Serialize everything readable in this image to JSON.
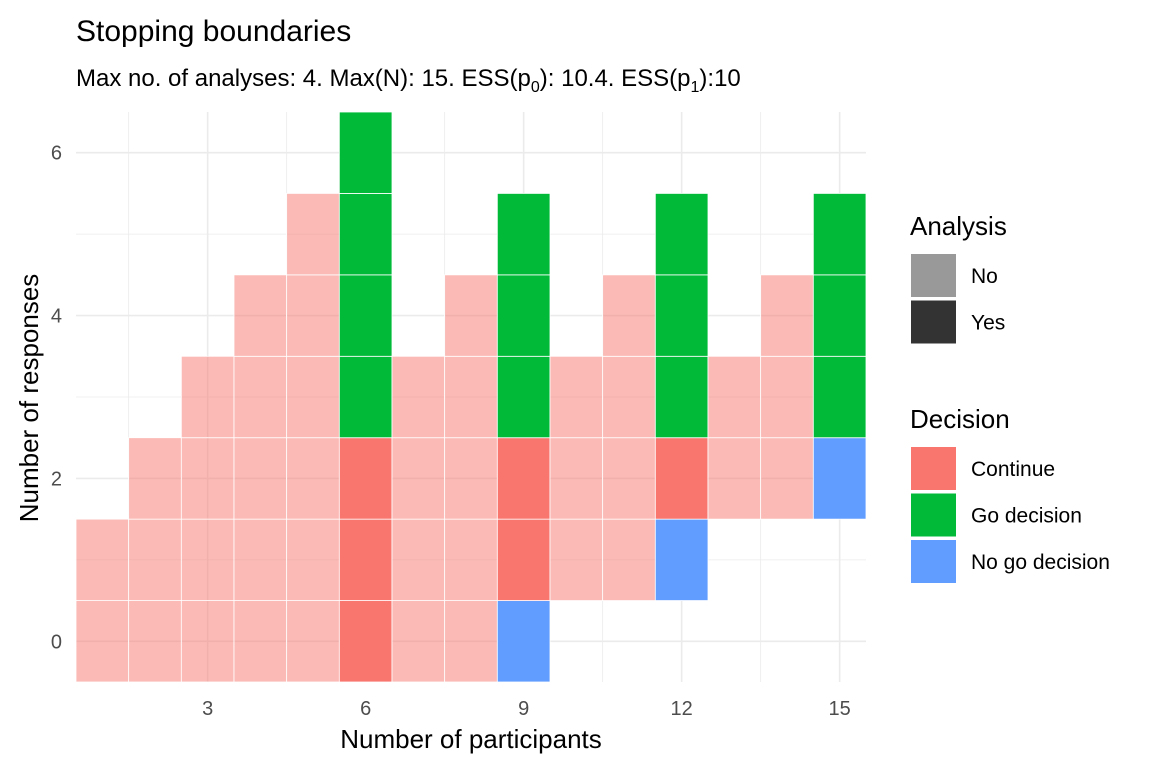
{
  "chart_data": {
    "type": "heatmap",
    "title": "Stopping boundaries",
    "subtitle": {
      "before": "Max no. of analyses: 4. Max(N): 15. ESS(p",
      "sub0": "0",
      "middle": "): 10.4. ESS(p",
      "sub1": "1",
      "after": "):10"
    },
    "xlabel": "Number of participants",
    "ylabel": "Number of responses",
    "xlim": [
      0.5,
      15.5
    ],
    "ylim": [
      -0.5,
      6.5
    ],
    "xticks": [
      3,
      6,
      9,
      12,
      15
    ],
    "yticks": [
      0,
      2,
      4,
      6
    ],
    "grid": true,
    "colors": {
      "Continue": "#F8766D",
      "Go decision": "#00BA38",
      "No go decision": "#619CFF",
      "analysis_no_alpha": 0.5,
      "analysis_yes_alpha": 1.0,
      "grid": "#ebebeb"
    },
    "analysis_points": [
      6,
      9,
      12,
      15
    ],
    "columns": [
      {
        "n": 1,
        "cells": [
          [
            0,
            "Continue"
          ],
          [
            1,
            "Continue"
          ]
        ]
      },
      {
        "n": 2,
        "cells": [
          [
            0,
            "Continue"
          ],
          [
            1,
            "Continue"
          ],
          [
            2,
            "Continue"
          ]
        ]
      },
      {
        "n": 3,
        "cells": [
          [
            0,
            "Continue"
          ],
          [
            1,
            "Continue"
          ],
          [
            2,
            "Continue"
          ],
          [
            3,
            "Continue"
          ]
        ]
      },
      {
        "n": 4,
        "cells": [
          [
            0,
            "Continue"
          ],
          [
            1,
            "Continue"
          ],
          [
            2,
            "Continue"
          ],
          [
            3,
            "Continue"
          ],
          [
            4,
            "Continue"
          ]
        ]
      },
      {
        "n": 5,
        "cells": [
          [
            0,
            "Continue"
          ],
          [
            1,
            "Continue"
          ],
          [
            2,
            "Continue"
          ],
          [
            3,
            "Continue"
          ],
          [
            4,
            "Continue"
          ],
          [
            5,
            "Continue"
          ]
        ]
      },
      {
        "n": 6,
        "cells": [
          [
            0,
            "Continue"
          ],
          [
            1,
            "Continue"
          ],
          [
            2,
            "Continue"
          ],
          [
            3,
            "Go decision"
          ],
          [
            4,
            "Go decision"
          ],
          [
            5,
            "Go decision"
          ],
          [
            6,
            "Go decision"
          ]
        ]
      },
      {
        "n": 7,
        "cells": [
          [
            0,
            "Continue"
          ],
          [
            1,
            "Continue"
          ],
          [
            2,
            "Continue"
          ],
          [
            3,
            "Continue"
          ]
        ]
      },
      {
        "n": 8,
        "cells": [
          [
            0,
            "Continue"
          ],
          [
            1,
            "Continue"
          ],
          [
            2,
            "Continue"
          ],
          [
            3,
            "Continue"
          ],
          [
            4,
            "Continue"
          ]
        ]
      },
      {
        "n": 9,
        "cells": [
          [
            0,
            "No go decision"
          ],
          [
            1,
            "Continue"
          ],
          [
            2,
            "Continue"
          ],
          [
            3,
            "Go decision"
          ],
          [
            4,
            "Go decision"
          ],
          [
            5,
            "Go decision"
          ]
        ]
      },
      {
        "n": 10,
        "cells": [
          [
            1,
            "Continue"
          ],
          [
            2,
            "Continue"
          ],
          [
            3,
            "Continue"
          ]
        ]
      },
      {
        "n": 11,
        "cells": [
          [
            1,
            "Continue"
          ],
          [
            2,
            "Continue"
          ],
          [
            3,
            "Continue"
          ],
          [
            4,
            "Continue"
          ]
        ]
      },
      {
        "n": 12,
        "cells": [
          [
            1,
            "No go decision"
          ],
          [
            2,
            "Continue"
          ],
          [
            3,
            "Go decision"
          ],
          [
            4,
            "Go decision"
          ],
          [
            5,
            "Go decision"
          ]
        ]
      },
      {
        "n": 13,
        "cells": [
          [
            2,
            "Continue"
          ],
          [
            3,
            "Continue"
          ]
        ]
      },
      {
        "n": 14,
        "cells": [
          [
            2,
            "Continue"
          ],
          [
            3,
            "Continue"
          ],
          [
            4,
            "Continue"
          ]
        ]
      },
      {
        "n": 15,
        "cells": [
          [
            2,
            "No go decision"
          ],
          [
            3,
            "Go decision"
          ],
          [
            4,
            "Go decision"
          ],
          [
            5,
            "Go decision"
          ]
        ]
      }
    ],
    "legend": {
      "analysis": {
        "title": "Analysis",
        "items": [
          {
            "label": "No",
            "color": "#999999"
          },
          {
            "label": "Yes",
            "color": "#333333"
          }
        ]
      },
      "decision": {
        "title": "Decision",
        "items": [
          {
            "label": "Continue",
            "color": "#F8766D"
          },
          {
            "label": "Go decision",
            "color": "#00BA38"
          },
          {
            "label": "No go decision",
            "color": "#619CFF"
          }
        ]
      },
      "placement": "right"
    }
  }
}
